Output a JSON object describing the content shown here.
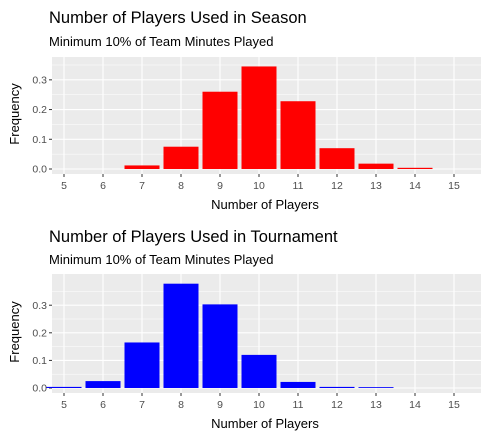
{
  "chart_data": [
    {
      "type": "bar",
      "title": "Number of Players Used in Season",
      "subtitle": "Minimum 10% of Team Minutes Played",
      "xlabel": "Number of Players",
      "ylabel": "Frequency",
      "categories": [
        "5",
        "6",
        "7",
        "8",
        "9",
        "10",
        "11",
        "12",
        "13",
        "14",
        "15"
      ],
      "values": [
        0,
        0,
        0.012,
        0.075,
        0.26,
        0.345,
        0.228,
        0.07,
        0.018,
        0.004,
        0
      ],
      "color": "#ff0000",
      "ylim": [
        0,
        0.36
      ],
      "yticks": [
        "0.0",
        "0.1",
        "0.2",
        "0.3"
      ],
      "grid": true,
      "legend": "none"
    },
    {
      "type": "bar",
      "title": "Number of Players Used in Tournament",
      "subtitle": "Minimum 10% of Team Minutes Played",
      "xlabel": "Number of Players",
      "ylabel": "Frequency",
      "categories": [
        "5",
        "6",
        "7",
        "8",
        "9",
        "10",
        "11",
        "12",
        "13",
        "14",
        "15"
      ],
      "values": [
        0.004,
        0.025,
        0.165,
        0.378,
        0.303,
        0.12,
        0.022,
        0.004,
        0.003,
        0,
        0
      ],
      "color": "#0000ff",
      "ylim": [
        0,
        0.395
      ],
      "yticks": [
        "0.0",
        "0.1",
        "0.2",
        "0.3"
      ],
      "grid": true,
      "legend": "none"
    }
  ]
}
